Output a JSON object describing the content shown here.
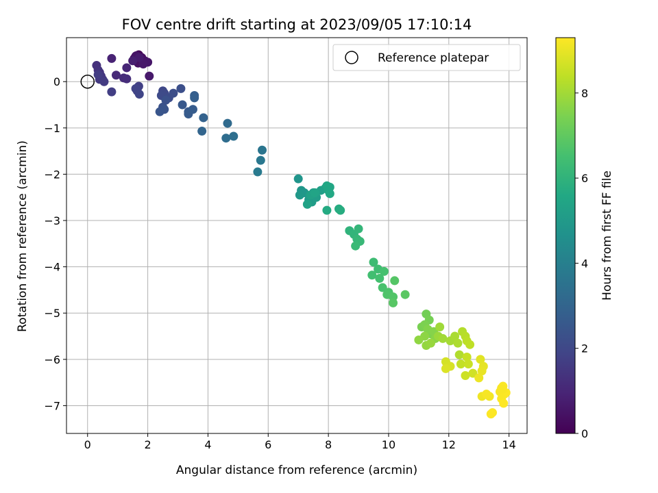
{
  "chart_data": {
    "type": "scatter",
    "title": "FOV centre drift starting at 2023/09/05 17:10:14",
    "xlabel": "Angular distance from reference (arcmin)",
    "ylabel": "Rotation from reference (arcmin)",
    "xlim": [
      -0.7,
      14.6
    ],
    "ylim": [
      -7.6,
      0.95
    ],
    "xticks": [
      0,
      2,
      4,
      6,
      8,
      10,
      12,
      14
    ],
    "yticks": [
      0,
      -1,
      -2,
      -3,
      -4,
      -5,
      -6,
      -7
    ],
    "grid": true,
    "legend": {
      "position": "top-right",
      "entries": [
        "Reference platepar"
      ]
    },
    "reference_point": {
      "x": 0,
      "y": 0,
      "label": "Reference platepar"
    },
    "colorbar": {
      "label": "Hours from first FF file",
      "range": [
        0,
        9.3
      ],
      "ticks": [
        0,
        2,
        4,
        6,
        8
      ],
      "colormap": "viridis"
    },
    "points": [
      {
        "x": 1.6,
        "y": 0.55,
        "t": 0.1
      },
      {
        "x": 1.7,
        "y": 0.58,
        "t": 0.15
      },
      {
        "x": 1.65,
        "y": 0.45,
        "t": 0.2
      },
      {
        "x": 1.55,
        "y": 0.5,
        "t": 0.25
      },
      {
        "x": 1.75,
        "y": 0.48,
        "t": 0.3
      },
      {
        "x": 1.8,
        "y": 0.52,
        "t": 0.35
      },
      {
        "x": 1.68,
        "y": 0.4,
        "t": 0.4
      },
      {
        "x": 1.9,
        "y": 0.45,
        "t": 0.45
      },
      {
        "x": 1.62,
        "y": 0.56,
        "t": 0.5
      },
      {
        "x": 2.0,
        "y": 0.42,
        "t": 0.55
      },
      {
        "x": 1.85,
        "y": 0.38,
        "t": 0.6
      },
      {
        "x": 2.05,
        "y": 0.12,
        "t": 0.65
      },
      {
        "x": 1.72,
        "y": 0.52,
        "t": 0.7
      },
      {
        "x": 1.5,
        "y": 0.45,
        "t": 0.8
      },
      {
        "x": 0.8,
        "y": 0.5,
        "t": 0.9
      },
      {
        "x": 1.3,
        "y": 0.3,
        "t": 1.0
      },
      {
        "x": 0.95,
        "y": 0.14,
        "t": 1.1
      },
      {
        "x": 1.2,
        "y": 0.08,
        "t": 1.15
      },
      {
        "x": 1.3,
        "y": 0.06,
        "t": 1.2
      },
      {
        "x": 0.3,
        "y": 0.35,
        "t": 1.3
      },
      {
        "x": 0.35,
        "y": 0.25,
        "t": 1.35
      },
      {
        "x": 0.4,
        "y": 0.2,
        "t": 1.4
      },
      {
        "x": 0.45,
        "y": 0.12,
        "t": 1.45
      },
      {
        "x": 0.5,
        "y": 0.05,
        "t": 1.5
      },
      {
        "x": 0.4,
        "y": 0.05,
        "t": 1.55
      },
      {
        "x": 0.55,
        "y": 0.0,
        "t": 1.6
      },
      {
        "x": 0.35,
        "y": 0.15,
        "t": 1.65
      },
      {
        "x": 0.8,
        "y": -0.22,
        "t": 1.7
      },
      {
        "x": 1.7,
        "y": -0.1,
        "t": 1.75
      },
      {
        "x": 1.65,
        "y": -0.2,
        "t": 1.8
      },
      {
        "x": 1.6,
        "y": -0.15,
        "t": 1.85
      },
      {
        "x": 1.72,
        "y": -0.27,
        "t": 1.9
      },
      {
        "x": 2.5,
        "y": -0.2,
        "t": 2.0
      },
      {
        "x": 2.55,
        "y": -0.25,
        "t": 2.05
      },
      {
        "x": 2.45,
        "y": -0.3,
        "t": 2.1
      },
      {
        "x": 2.7,
        "y": -0.35,
        "t": 2.15
      },
      {
        "x": 2.85,
        "y": -0.25,
        "t": 2.2
      },
      {
        "x": 3.1,
        "y": -0.15,
        "t": 2.25
      },
      {
        "x": 2.6,
        "y": -0.4,
        "t": 2.3
      },
      {
        "x": 2.5,
        "y": -0.55,
        "t": 2.35
      },
      {
        "x": 2.55,
        "y": -0.6,
        "t": 2.4
      },
      {
        "x": 2.4,
        "y": -0.65,
        "t": 2.45
      },
      {
        "x": 3.15,
        "y": -0.5,
        "t": 2.55
      },
      {
        "x": 3.35,
        "y": -0.65,
        "t": 2.6
      },
      {
        "x": 3.35,
        "y": -0.7,
        "t": 2.65
      },
      {
        "x": 3.5,
        "y": -0.6,
        "t": 2.7
      },
      {
        "x": 3.55,
        "y": -0.3,
        "t": 2.75
      },
      {
        "x": 3.55,
        "y": -0.35,
        "t": 2.8
      },
      {
        "x": 3.85,
        "y": -0.78,
        "t": 2.9
      },
      {
        "x": 3.8,
        "y": -1.07,
        "t": 3.0
      },
      {
        "x": 4.65,
        "y": -0.9,
        "t": 3.2
      },
      {
        "x": 4.6,
        "y": -1.22,
        "t": 3.3
      },
      {
        "x": 4.85,
        "y": -1.18,
        "t": 3.4
      },
      {
        "x": 5.8,
        "y": -1.48,
        "t": 3.6
      },
      {
        "x": 5.75,
        "y": -1.7,
        "t": 3.7
      },
      {
        "x": 5.65,
        "y": -1.95,
        "t": 3.8
      },
      {
        "x": 7.0,
        "y": -2.1,
        "t": 4.8
      },
      {
        "x": 7.1,
        "y": -2.35,
        "t": 4.85
      },
      {
        "x": 7.2,
        "y": -2.4,
        "t": 4.9
      },
      {
        "x": 7.05,
        "y": -2.45,
        "t": 4.95
      },
      {
        "x": 7.35,
        "y": -2.55,
        "t": 5.0
      },
      {
        "x": 7.5,
        "y": -2.4,
        "t": 5.05
      },
      {
        "x": 7.45,
        "y": -2.6,
        "t": 5.1
      },
      {
        "x": 7.6,
        "y": -2.5,
        "t": 5.15
      },
      {
        "x": 7.75,
        "y": -2.35,
        "t": 5.2
      },
      {
        "x": 7.9,
        "y": -2.3,
        "t": 5.25
      },
      {
        "x": 7.4,
        "y": -2.45,
        "t": 5.3
      },
      {
        "x": 7.3,
        "y": -2.65,
        "t": 5.35
      },
      {
        "x": 7.55,
        "y": -2.4,
        "t": 5.4
      },
      {
        "x": 8.0,
        "y": -2.35,
        "t": 5.45
      },
      {
        "x": 8.05,
        "y": -2.28,
        "t": 5.5
      },
      {
        "x": 7.95,
        "y": -2.25,
        "t": 5.55
      },
      {
        "x": 8.05,
        "y": -2.42,
        "t": 5.6
      },
      {
        "x": 7.95,
        "y": -2.78,
        "t": 5.65
      },
      {
        "x": 8.35,
        "y": -2.75,
        "t": 5.7
      },
      {
        "x": 8.4,
        "y": -2.78,
        "t": 5.75
      },
      {
        "x": 8.7,
        "y": -3.22,
        "t": 6.0
      },
      {
        "x": 8.85,
        "y": -3.3,
        "t": 6.05
      },
      {
        "x": 9.0,
        "y": -3.18,
        "t": 6.1
      },
      {
        "x": 8.95,
        "y": -3.4,
        "t": 6.15
      },
      {
        "x": 9.05,
        "y": -3.45,
        "t": 6.2
      },
      {
        "x": 8.9,
        "y": -3.55,
        "t": 6.25
      },
      {
        "x": 9.5,
        "y": -3.9,
        "t": 6.35
      },
      {
        "x": 9.65,
        "y": -4.05,
        "t": 6.4
      },
      {
        "x": 9.45,
        "y": -4.18,
        "t": 6.45
      },
      {
        "x": 9.7,
        "y": -4.25,
        "t": 6.5
      },
      {
        "x": 9.85,
        "y": -4.1,
        "t": 6.55
      },
      {
        "x": 9.8,
        "y": -4.45,
        "t": 6.6
      },
      {
        "x": 10.0,
        "y": -4.55,
        "t": 6.65
      },
      {
        "x": 9.95,
        "y": -4.6,
        "t": 6.7
      },
      {
        "x": 10.15,
        "y": -4.65,
        "t": 6.75
      },
      {
        "x": 10.2,
        "y": -4.3,
        "t": 6.8
      },
      {
        "x": 10.15,
        "y": -4.78,
        "t": 6.85
      },
      {
        "x": 10.55,
        "y": -4.6,
        "t": 6.9
      },
      {
        "x": 11.25,
        "y": -5.02,
        "t": 7.3
      },
      {
        "x": 11.35,
        "y": -5.15,
        "t": 7.35
      },
      {
        "x": 11.1,
        "y": -5.3,
        "t": 7.4
      },
      {
        "x": 11.2,
        "y": -5.25,
        "t": 7.45
      },
      {
        "x": 11.4,
        "y": -5.45,
        "t": 7.5
      },
      {
        "x": 11.3,
        "y": -5.35,
        "t": 7.55
      },
      {
        "x": 11.5,
        "y": -5.4,
        "t": 7.6
      },
      {
        "x": 11.55,
        "y": -5.55,
        "t": 7.65
      },
      {
        "x": 11.2,
        "y": -5.5,
        "t": 7.7
      },
      {
        "x": 11.0,
        "y": -5.58,
        "t": 7.75
      },
      {
        "x": 11.25,
        "y": -5.7,
        "t": 7.8
      },
      {
        "x": 11.4,
        "y": -5.65,
        "t": 7.85
      },
      {
        "x": 11.65,
        "y": -5.5,
        "t": 7.9
      },
      {
        "x": 11.7,
        "y": -5.3,
        "t": 7.95
      },
      {
        "x": 11.8,
        "y": -5.55,
        "t": 8.0
      },
      {
        "x": 12.05,
        "y": -5.6,
        "t": 8.05
      },
      {
        "x": 12.2,
        "y": -5.5,
        "t": 8.1
      },
      {
        "x": 12.3,
        "y": -5.65,
        "t": 8.15
      },
      {
        "x": 12.35,
        "y": -5.9,
        "t": 8.2
      },
      {
        "x": 12.45,
        "y": -5.4,
        "t": 8.25
      },
      {
        "x": 12.55,
        "y": -5.5,
        "t": 8.3
      },
      {
        "x": 12.6,
        "y": -5.6,
        "t": 8.35
      },
      {
        "x": 12.7,
        "y": -5.68,
        "t": 8.4
      },
      {
        "x": 12.4,
        "y": -6.1,
        "t": 8.45
      },
      {
        "x": 12.6,
        "y": -5.95,
        "t": 8.5
      },
      {
        "x": 12.65,
        "y": -6.1,
        "t": 8.55
      },
      {
        "x": 12.55,
        "y": -6.35,
        "t": 8.6
      },
      {
        "x": 12.8,
        "y": -6.3,
        "t": 8.65
      },
      {
        "x": 11.9,
        "y": -6.05,
        "t": 8.7
      },
      {
        "x": 12.05,
        "y": -6.15,
        "t": 8.75
      },
      {
        "x": 11.9,
        "y": -6.2,
        "t": 8.8
      },
      {
        "x": 13.05,
        "y": -6.0,
        "t": 8.9
      },
      {
        "x": 13.15,
        "y": -6.15,
        "t": 8.95
      },
      {
        "x": 13.1,
        "y": -6.25,
        "t": 9.0
      },
      {
        "x": 13.0,
        "y": -6.4,
        "t": 9.05
      },
      {
        "x": 13.1,
        "y": -6.8,
        "t": 9.1
      },
      {
        "x": 13.35,
        "y": -6.8,
        "t": 9.15
      },
      {
        "x": 13.25,
        "y": -6.75,
        "t": 9.2
      },
      {
        "x": 13.45,
        "y": -7.15,
        "t": 9.25
      },
      {
        "x": 13.4,
        "y": -7.18,
        "t": 9.28
      },
      {
        "x": 13.75,
        "y": -6.62,
        "t": 9.2
      },
      {
        "x": 13.8,
        "y": -6.58,
        "t": 9.25
      },
      {
        "x": 13.7,
        "y": -6.7,
        "t": 9.22
      },
      {
        "x": 13.85,
        "y": -6.75,
        "t": 9.27
      },
      {
        "x": 13.9,
        "y": -6.72,
        "t": 9.29
      },
      {
        "x": 13.75,
        "y": -6.85,
        "t": 9.26
      },
      {
        "x": 13.82,
        "y": -6.95,
        "t": 9.3
      },
      {
        "x": 13.78,
        "y": -6.65,
        "t": 9.24
      }
    ]
  }
}
